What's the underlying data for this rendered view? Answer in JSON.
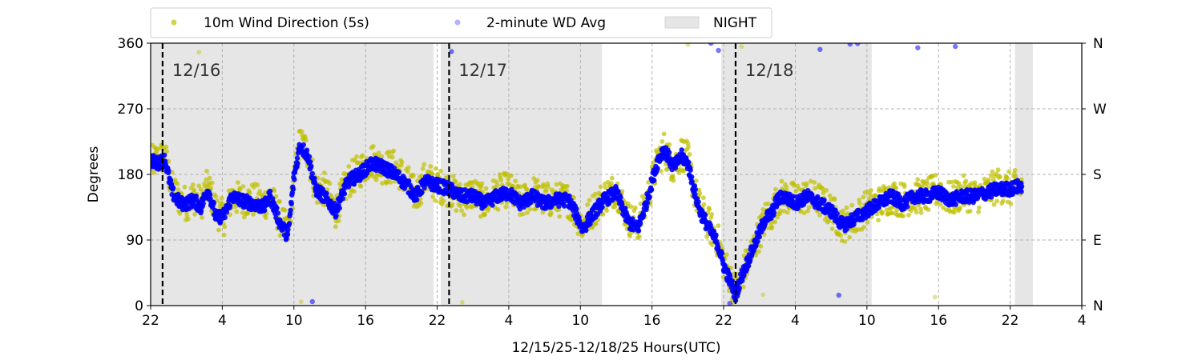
{
  "chart_data": {
    "type": "scatter",
    "xlabel": "12/15/25-12/18/25  Hours(UTC)",
    "ylabel": "Degrees",
    "xlim": [
      22,
      100
    ],
    "ylim": [
      0,
      360
    ],
    "x_ticks": [
      {
        "v": 22,
        "label": "22"
      },
      {
        "v": 28,
        "label": "4"
      },
      {
        "v": 34,
        "label": "10"
      },
      {
        "v": 40,
        "label": "16"
      },
      {
        "v": 46,
        "label": "22"
      },
      {
        "v": 52,
        "label": "4"
      },
      {
        "v": 58,
        "label": "10"
      },
      {
        "v": 64,
        "label": "16"
      },
      {
        "v": 70,
        "label": "22"
      },
      {
        "v": 76,
        "label": "4"
      },
      {
        "v": 82,
        "label": "10"
      },
      {
        "v": 88,
        "label": "16"
      },
      {
        "v": 94,
        "label": "22"
      },
      {
        "v": 100,
        "label": "4"
      }
    ],
    "y_ticks": [
      {
        "v": 0,
        "label": "0"
      },
      {
        "v": 90,
        "label": "90"
      },
      {
        "v": 180,
        "label": "180"
      },
      {
        "v": 270,
        "label": "270"
      },
      {
        "v": 360,
        "label": "360"
      }
    ],
    "y2_ticks": [
      {
        "v": 0,
        "label": "N"
      },
      {
        "v": 90,
        "label": "E"
      },
      {
        "v": 180,
        "label": "S"
      },
      {
        "v": 270,
        "label": "W"
      },
      {
        "v": 360,
        "label": "N"
      }
    ],
    "grid": true,
    "legend_position": "top",
    "legend": [
      {
        "label": "10m Wind Direction (5s)",
        "color": "#bfbf00"
      },
      {
        "label": "2-minute WD Avg",
        "color": "#0000ff"
      },
      {
        "label": "NIGHT",
        "color": "#e6e6e6"
      }
    ],
    "night_spans": [
      [
        22,
        45.7
      ],
      [
        46.3,
        59.8
      ],
      [
        69.8,
        82.4
      ],
      [
        94.4,
        95.9
      ]
    ],
    "day_markers": [
      {
        "x": 23.0,
        "label": "12/16"
      },
      {
        "x": 47.0,
        "label": "12/17"
      },
      {
        "x": 71.0,
        "label": "12/18"
      }
    ],
    "series": [
      {
        "name": "10m Wind Direction (5s)",
        "color": "#bfbf00",
        "trace": [
          [
            22.0,
            195
          ],
          [
            22.5,
            200
          ],
          [
            23.2,
            205
          ],
          [
            23.8,
            160
          ],
          [
            24.5,
            145
          ],
          [
            25.0,
            140
          ],
          [
            25.6,
            150
          ],
          [
            26.2,
            140
          ],
          [
            26.8,
            165
          ],
          [
            27.5,
            130
          ],
          [
            28.2,
            120
          ],
          [
            28.8,
            150
          ],
          [
            29.5,
            145
          ],
          [
            30.5,
            145
          ],
          [
            31.5,
            140
          ],
          [
            32.0,
            150
          ],
          [
            32.8,
            120
          ],
          [
            33.5,
            100
          ],
          [
            34.0,
            170
          ],
          [
            34.5,
            225
          ],
          [
            35.2,
            210
          ],
          [
            35.8,
            160
          ],
          [
            36.5,
            160
          ],
          [
            37.5,
            130
          ],
          [
            38.5,
            170
          ],
          [
            39.5,
            185
          ],
          [
            40.5,
            200
          ],
          [
            41.5,
            190
          ],
          [
            42.5,
            190
          ],
          [
            43.5,
            170
          ],
          [
            44.2,
            150
          ],
          [
            45.0,
            175
          ],
          [
            46.0,
            165
          ],
          [
            47.0,
            160
          ],
          [
            48.0,
            145
          ],
          [
            49.0,
            155
          ],
          [
            50.0,
            140
          ],
          [
            51.0,
            155
          ],
          [
            52.0,
            160
          ],
          [
            53.0,
            140
          ],
          [
            54.0,
            155
          ],
          [
            55.0,
            145
          ],
          [
            56.0,
            145
          ],
          [
            57.0,
            145
          ],
          [
            57.5,
            130
          ],
          [
            58.2,
            110
          ],
          [
            58.8,
            125
          ],
          [
            59.5,
            140
          ],
          [
            60.0,
            150
          ],
          [
            61.0,
            160
          ],
          [
            62.0,
            120
          ],
          [
            62.8,
            110
          ],
          [
            63.5,
            140
          ],
          [
            64.0,
            170
          ],
          [
            64.5,
            200
          ],
          [
            65.0,
            215
          ],
          [
            65.8,
            190
          ],
          [
            66.5,
            210
          ],
          [
            67.0,
            200
          ],
          [
            67.5,
            160
          ],
          [
            68.0,
            135
          ],
          [
            68.8,
            110
          ],
          [
            69.5,
            90
          ],
          [
            70.0,
            60
          ],
          [
            70.5,
            40
          ],
          [
            71.0,
            20
          ],
          [
            71.5,
            40
          ],
          [
            72.0,
            60
          ],
          [
            72.5,
            80
          ],
          [
            73.0,
            100
          ],
          [
            73.5,
            120
          ],
          [
            74.0,
            125
          ],
          [
            74.5,
            145
          ],
          [
            75.0,
            150
          ],
          [
            76.0,
            145
          ],
          [
            77.0,
            150
          ],
          [
            78.0,
            145
          ],
          [
            79.0,
            130
          ],
          [
            80.0,
            110
          ],
          [
            81.0,
            120
          ],
          [
            82.0,
            135
          ],
          [
            83.0,
            140
          ],
          [
            84.0,
            150
          ],
          [
            85.0,
            145
          ],
          [
            86.0,
            150
          ],
          [
            87.0,
            150
          ],
          [
            88.0,
            160
          ],
          [
            89.0,
            145
          ],
          [
            90.0,
            155
          ],
          [
            91.0,
            150
          ],
          [
            92.0,
            155
          ],
          [
            93.0,
            165
          ],
          [
            94.0,
            160
          ],
          [
            95.0,
            165
          ]
        ]
      },
      {
        "name": "2-minute WD Avg",
        "color": "#0000ff",
        "trace": [
          [
            22.0,
            200
          ],
          [
            22.5,
            195
          ],
          [
            23.2,
            200
          ],
          [
            23.8,
            155
          ],
          [
            24.5,
            140
          ],
          [
            25.0,
            140
          ],
          [
            25.6,
            145
          ],
          [
            26.2,
            135
          ],
          [
            26.8,
            160
          ],
          [
            27.5,
            120
          ],
          [
            28.2,
            125
          ],
          [
            28.8,
            150
          ],
          [
            29.5,
            145
          ],
          [
            30.5,
            140
          ],
          [
            31.5,
            135
          ],
          [
            32.0,
            150
          ],
          [
            32.8,
            115
          ],
          [
            33.5,
            95
          ],
          [
            34.0,
            175
          ],
          [
            34.5,
            220
          ],
          [
            35.2,
            205
          ],
          [
            35.8,
            160
          ],
          [
            36.5,
            150
          ],
          [
            37.5,
            130
          ],
          [
            38.5,
            170
          ],
          [
            39.5,
            180
          ],
          [
            40.5,
            195
          ],
          [
            41.5,
            190
          ],
          [
            42.5,
            180
          ],
          [
            43.5,
            165
          ],
          [
            44.2,
            150
          ],
          [
            45.0,
            170
          ],
          [
            46.0,
            165
          ],
          [
            47.0,
            160
          ],
          [
            48.0,
            150
          ],
          [
            49.0,
            150
          ],
          [
            50.0,
            140
          ],
          [
            51.0,
            150
          ],
          [
            52.0,
            155
          ],
          [
            53.0,
            140
          ],
          [
            54.0,
            150
          ],
          [
            55.0,
            140
          ],
          [
            56.0,
            145
          ],
          [
            57.0,
            145
          ],
          [
            57.5,
            130
          ],
          [
            58.2,
            105
          ],
          [
            58.8,
            120
          ],
          [
            59.5,
            135
          ],
          [
            60.0,
            145
          ],
          [
            61.0,
            155
          ],
          [
            62.0,
            115
          ],
          [
            62.8,
            105
          ],
          [
            63.5,
            140
          ],
          [
            64.0,
            170
          ],
          [
            64.5,
            200
          ],
          [
            65.0,
            215
          ],
          [
            65.8,
            190
          ],
          [
            66.5,
            205
          ],
          [
            67.0,
            195
          ],
          [
            67.5,
            160
          ],
          [
            68.0,
            130
          ],
          [
            68.8,
            105
          ],
          [
            69.5,
            85
          ],
          [
            70.0,
            55
          ],
          [
            70.5,
            35
          ],
          [
            71.0,
            15
          ],
          [
            71.5,
            40
          ],
          [
            72.0,
            60
          ],
          [
            72.5,
            80
          ],
          [
            73.0,
            100
          ],
          [
            73.5,
            120
          ],
          [
            74.0,
            125
          ],
          [
            74.5,
            145
          ],
          [
            75.0,
            150
          ],
          [
            76.0,
            140
          ],
          [
            77.0,
            150
          ],
          [
            78.0,
            140
          ],
          [
            79.0,
            130
          ],
          [
            80.0,
            110
          ],
          [
            81.0,
            120
          ],
          [
            82.0,
            130
          ],
          [
            83.0,
            140
          ],
          [
            84.0,
            150
          ],
          [
            85.0,
            140
          ],
          [
            86.0,
            150
          ],
          [
            87.0,
            150
          ],
          [
            88.0,
            155
          ],
          [
            89.0,
            145
          ],
          [
            90.0,
            150
          ],
          [
            91.0,
            150
          ],
          [
            92.0,
            155
          ],
          [
            93.0,
            160
          ],
          [
            94.0,
            160
          ],
          [
            95.0,
            165
          ]
        ]
      }
    ]
  }
}
